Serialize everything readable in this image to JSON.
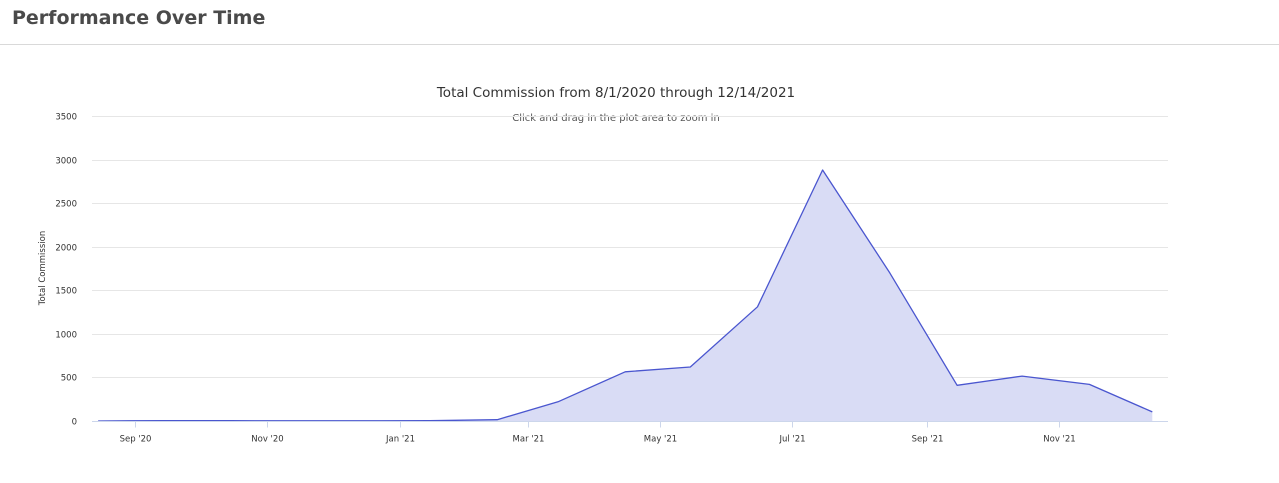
{
  "header": {
    "title": "Performance Over Time"
  },
  "chart_data": {
    "type": "area",
    "title": "Total Commission from 8/1/2020 through 12/14/2021",
    "subtitle": "Click and drag in the plot area to zoom in",
    "ylabel": "Total Commission",
    "xlabel": "",
    "ylim": [
      0,
      3500
    ],
    "xlim": [
      "2020-08-10",
      "2021-12-14"
    ],
    "yticks": [
      0,
      500,
      1000,
      1500,
      2000,
      2500,
      3000,
      3500
    ],
    "xticks": [
      {
        "label": "Sep '20",
        "date": "2020-09-01"
      },
      {
        "label": "Nov '20",
        "date": "2020-11-01"
      },
      {
        "label": "Jan '21",
        "date": "2021-01-01"
      },
      {
        "label": "Mar '21",
        "date": "2021-03-01"
      },
      {
        "label": "May '21",
        "date": "2021-05-01"
      },
      {
        "label": "Jul '21",
        "date": "2021-07-01"
      },
      {
        "label": "Sep '21",
        "date": "2021-09-01"
      },
      {
        "label": "Nov '21",
        "date": "2021-11-01"
      }
    ],
    "grid": true,
    "legend": "none",
    "color": "#4a56cf",
    "fill_color": "#d9dcf5",
    "series": [
      {
        "points": [
          {
            "date": "2020-08-15",
            "value": 0
          },
          {
            "date": "2020-09-15",
            "value": 5
          },
          {
            "date": "2020-10-15",
            "value": 3
          },
          {
            "date": "2020-11-15",
            "value": 2
          },
          {
            "date": "2020-12-15",
            "value": 2
          },
          {
            "date": "2021-01-15",
            "value": 3
          },
          {
            "date": "2021-02-15",
            "value": 15
          },
          {
            "date": "2021-03-15",
            "value": 220
          },
          {
            "date": "2021-04-15",
            "value": 565
          },
          {
            "date": "2021-05-15",
            "value": 620
          },
          {
            "date": "2021-06-15",
            "value": 1310
          },
          {
            "date": "2021-07-15",
            "value": 2880
          },
          {
            "date": "2021-08-15",
            "value": 1700
          },
          {
            "date": "2021-09-15",
            "value": 410
          },
          {
            "date": "2021-10-15",
            "value": 515
          },
          {
            "date": "2021-11-15",
            "value": 420
          },
          {
            "date": "2021-12-14",
            "value": 105
          }
        ]
      }
    ]
  }
}
